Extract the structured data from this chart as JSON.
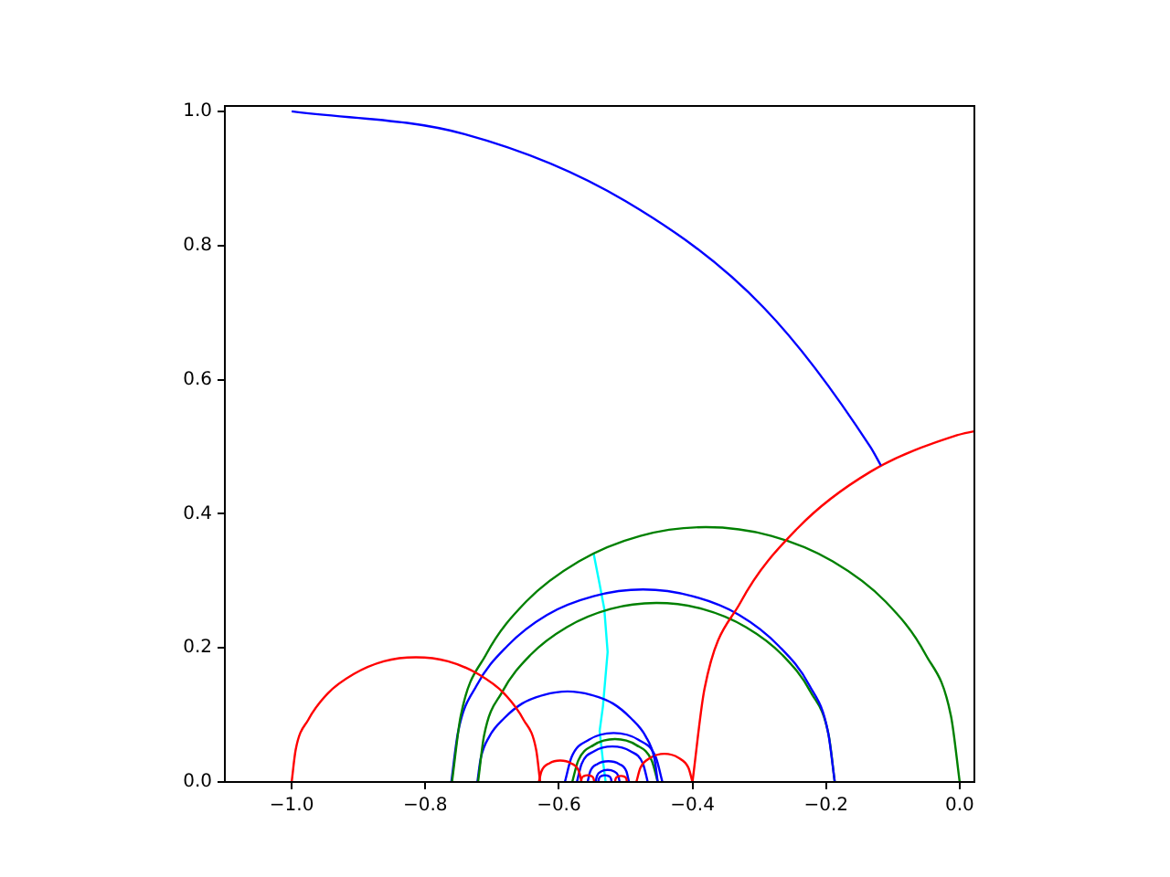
{
  "chart_data": {
    "type": "line",
    "xlim": [
      -1.1,
      0.022
    ],
    "ylim": [
      0,
      1.008
    ],
    "xticks": [
      {
        "value": -1.0,
        "label": "−1.0"
      },
      {
        "value": -0.8,
        "label": "−0.8"
      },
      {
        "value": -0.6,
        "label": "−0.6"
      },
      {
        "value": -0.4,
        "label": "−0.4"
      },
      {
        "value": -0.2,
        "label": "−0.2"
      },
      {
        "value": 0,
        "label": "0.0"
      }
    ],
    "yticks": [
      {
        "value": 0,
        "label": "0.0"
      },
      {
        "value": 0.2,
        "label": "0.2"
      },
      {
        "value": 0.4,
        "label": "0.4"
      },
      {
        "value": 0.6,
        "label": "0.6"
      },
      {
        "value": 0.8,
        "label": "0.8"
      },
      {
        "value": 1.0,
        "label": "1.0"
      }
    ],
    "series": [
      {
        "color": "#0000ff",
        "x": [
          -1,
          -0.741,
          -0.5,
          -0.293,
          -0.134,
          -0.118
        ],
        "values": [
          1,
          0.966,
          0.866,
          0.707,
          0.5,
          0.472
        ]
      },
      {
        "color": "#ff0000",
        "x": [
          -0.4,
          -0.382,
          -0.328,
          -0.243,
          -0.133,
          -0.004,
          0.022
        ],
        "values": [
          0,
          0.139,
          0.268,
          0.378,
          0.463,
          0.517,
          0.523
        ]
      },
      {
        "color": "#ff0000",
        "x": [
          -1.0,
          -0.994,
          -0.975,
          -0.946,
          -0.907,
          -0.862,
          -0.814,
          -0.766,
          -0.721,
          -0.682,
          -0.653,
          -0.634,
          -0.628
        ],
        "values": [
          0,
          0.048,
          0.093,
          0.132,
          0.161,
          0.18,
          0.186,
          0.18,
          0.161,
          0.132,
          0.093,
          0.048,
          0
        ]
      },
      {
        "color": "#008000",
        "x": [
          -0.76,
          -0.747,
          -0.709,
          -0.649,
          -0.57,
          -0.478,
          -0.38,
          -0.282,
          -0.19,
          -0.111,
          -0.051,
          -0.013,
          0.0
        ],
        "values": [
          0,
          0.098,
          0.19,
          0.269,
          0.329,
          0.367,
          0.38,
          0.367,
          0.329,
          0.269,
          0.19,
          0.098,
          0
        ]
      },
      {
        "color": "#0000ff",
        "x": [
          -0.761,
          -0.751,
          -0.723,
          -0.677,
          -0.618,
          -0.548,
          -0.474,
          -0.4,
          -0.33,
          -0.271,
          -0.225,
          -0.197,
          -0.187
        ],
        "values": [
          0,
          0.074,
          0.144,
          0.203,
          0.249,
          0.277,
          0.287,
          0.277,
          0.249,
          0.203,
          0.144,
          0.074,
          0
        ]
      },
      {
        "color": "#008000",
        "x": [
          -0.721,
          -0.712,
          -0.685,
          -0.643,
          -0.588,
          -0.523,
          -0.454,
          -0.385,
          -0.32,
          -0.265,
          -0.223,
          -0.196,
          -0.187
        ],
        "values": [
          0,
          0.069,
          0.134,
          0.189,
          0.231,
          0.258,
          0.267,
          0.258,
          0.231,
          0.189,
          0.134,
          0.069,
          0
        ]
      },
      {
        "color": "#0000ff",
        "x": [
          -0.722,
          -0.717,
          -0.704,
          -0.682,
          -0.655,
          -0.622,
          -0.587,
          -0.552,
          -0.519,
          -0.492,
          -0.47,
          -0.457,
          -0.452
        ],
        "values": [
          0,
          0.035,
          0.068,
          0.095,
          0.117,
          0.13,
          0.135,
          0.13,
          0.117,
          0.095,
          0.068,
          0.035,
          0
        ]
      },
      {
        "color": "#ff0000",
        "x": [
          -0.63,
          -0.626,
          -0.614,
          -0.598,
          -0.582,
          -0.57,
          -0.566
        ],
        "values": [
          0,
          0.016,
          0.028,
          0.032,
          0.028,
          0.016,
          0
        ]
      },
      {
        "color": "#ff0000",
        "x": [
          -0.484,
          -0.478,
          -0.463,
          -0.442,
          -0.421,
          -0.406,
          -0.4
        ],
        "values": [
          0,
          0.021,
          0.036,
          0.042,
          0.036,
          0.021,
          0
        ]
      },
      {
        "color": "#ff0000",
        "x": [
          -0.567,
          -0.566,
          -0.562,
          -0.557,
          -0.552,
          -0.548,
          -0.547
        ],
        "values": [
          0,
          0.005,
          0.009,
          0.01,
          0.009,
          0.005,
          0
        ]
      },
      {
        "color": "#ff0000",
        "x": [
          -0.516,
          -0.515,
          -0.512,
          -0.507,
          -0.502,
          -0.499,
          -0.498
        ],
        "values": [
          0,
          0.005,
          0.008,
          0.009,
          0.008,
          0.005,
          0
        ]
      },
      {
        "color": "#0000ff",
        "x": [
          -0.591,
          -0.581,
          -0.555,
          -0.518,
          -0.481,
          -0.455,
          -0.445
        ],
        "values": [
          0,
          0.037,
          0.063,
          0.073,
          0.063,
          0.037,
          0
        ]
      },
      {
        "color": "#008000",
        "x": [
          -0.58,
          -0.571,
          -0.548,
          -0.516,
          -0.484,
          -0.461,
          -0.452
        ],
        "values": [
          0,
          0.032,
          0.055,
          0.064,
          0.055,
          0.032,
          0
        ]
      },
      {
        "color": "#0000ff",
        "x": [
          -0.573,
          -0.566,
          -0.547,
          -0.52,
          -0.493,
          -0.474,
          -0.467
        ],
        "values": [
          0,
          0.027,
          0.046,
          0.053,
          0.046,
          0.027,
          0
        ]
      },
      {
        "color": "#0000ff",
        "x": [
          -0.557,
          -0.553,
          -0.542,
          -0.526,
          -0.51,
          -0.499,
          -0.495
        ],
        "values": [
          0,
          0.016,
          0.027,
          0.031,
          0.027,
          0.016,
          0
        ]
      },
      {
        "color": "#0000ff",
        "x": [
          -0.545,
          -0.543,
          -0.536,
          -0.527,
          -0.518,
          -0.511,
          -0.509
        ],
        "values": [
          0,
          0.009,
          0.016,
          0.018,
          0.016,
          0.009,
          0
        ]
      },
      {
        "color": "#0000ff",
        "x": [
          -0.541,
          -0.54,
          -0.536,
          -0.531,
          -0.526,
          -0.522,
          -0.521
        ],
        "values": [
          0,
          0.005,
          0.009,
          0.01,
          0.009,
          0.005,
          0
        ]
      },
      {
        "color": "#00ffff",
        "x": [
          -0.548,
          -0.54,
          -0.532,
          -0.527,
          -0.534,
          -0.539,
          -0.534,
          -0.53
        ],
        "values": [
          0.341,
          0.3,
          0.258,
          0.194,
          0.113,
          0.076,
          0.031,
          0
        ]
      }
    ]
  }
}
